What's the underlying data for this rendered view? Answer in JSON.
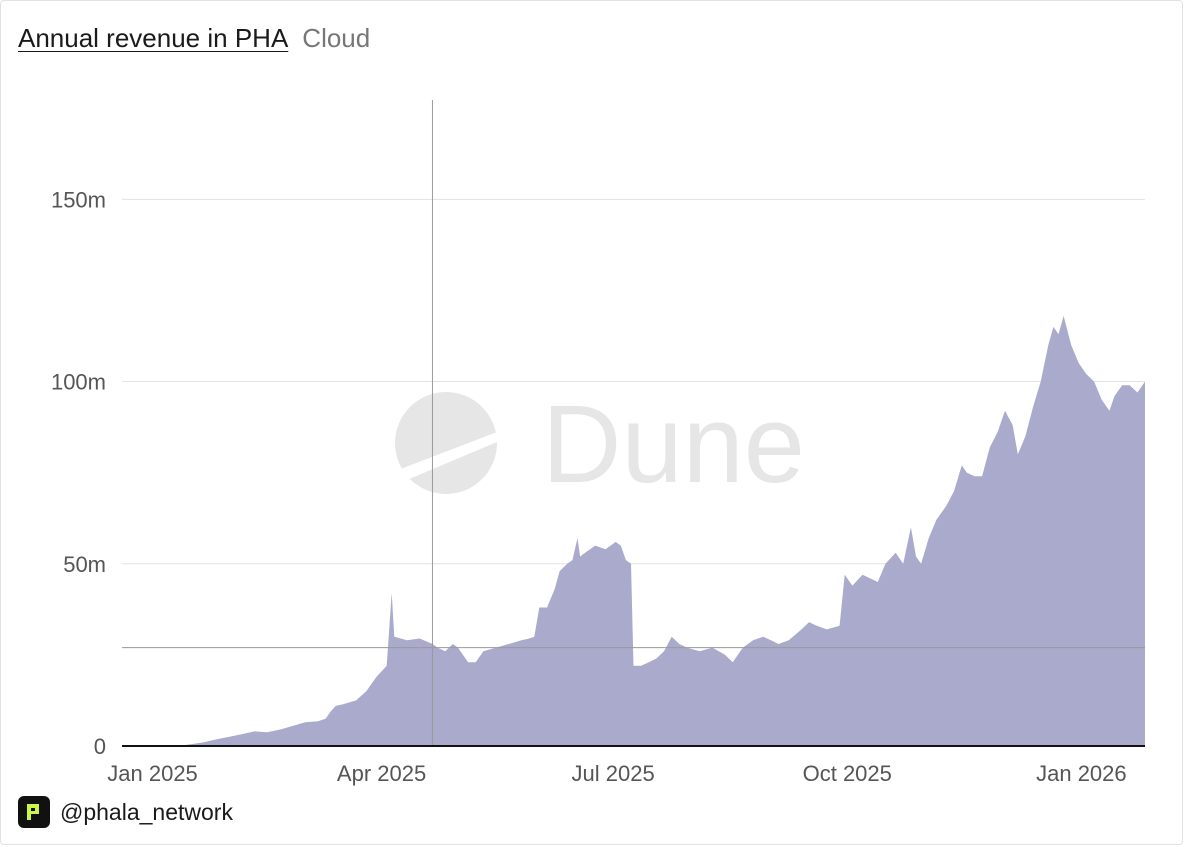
{
  "header": {
    "title": "Annual revenue in PHA",
    "subtitle": "Cloud"
  },
  "footer": {
    "handle": "@phala_network"
  },
  "watermark": {
    "text": "Dune"
  },
  "colors": {
    "area": "#a9aacc",
    "grid": "#e2e2e2",
    "crosshair": "#9a9a9a",
    "baseline": "#111111"
  },
  "chart_data": {
    "type": "area",
    "title": "Annual revenue in PHA",
    "subtitle": "Cloud",
    "xlabel": "",
    "ylabel": "",
    "ylim": [
      0,
      180
    ],
    "y_unit": "m",
    "y_ticks": [
      {
        "value": 0,
        "label": "0"
      },
      {
        "value": 50,
        "label": "50m"
      },
      {
        "value": 100,
        "label": "100m"
      },
      {
        "value": 150,
        "label": "150m"
      }
    ],
    "x_ticks": [
      {
        "day": 0,
        "label": "Jan 2025"
      },
      {
        "day": 90,
        "label": "Apr 2025"
      },
      {
        "day": 181,
        "label": "Jul 2025"
      },
      {
        "day": 273,
        "label": "Oct 2025"
      },
      {
        "day": 365,
        "label": "Jan 2026"
      }
    ],
    "x_domain": [
      -12,
      390
    ],
    "x_unit": "days since 2025-01-01",
    "crosshair": {
      "day": 110,
      "value": 27
    },
    "series": [
      {
        "name": "Annual revenue (PHA)",
        "points": [
          [
            -12,
            0
          ],
          [
            10,
            0
          ],
          [
            15,
            0.5
          ],
          [
            20,
            1
          ],
          [
            25,
            1.8
          ],
          [
            30,
            2.5
          ],
          [
            35,
            3.2
          ],
          [
            40,
            4
          ],
          [
            45,
            3.8
          ],
          [
            50,
            4.5
          ],
          [
            55,
            5.5
          ],
          [
            60,
            6.5
          ],
          [
            65,
            6.8
          ],
          [
            68,
            7.5
          ],
          [
            70,
            9.5
          ],
          [
            72,
            11
          ],
          [
            75,
            11.5
          ],
          [
            80,
            12.5
          ],
          [
            84,
            15
          ],
          [
            88,
            19
          ],
          [
            92,
            22
          ],
          [
            94,
            42
          ],
          [
            95,
            30
          ],
          [
            100,
            29
          ],
          [
            105,
            29.5
          ],
          [
            110,
            28
          ],
          [
            112,
            27
          ],
          [
            115,
            26
          ],
          [
            118,
            28
          ],
          [
            120,
            27
          ],
          [
            124,
            23
          ],
          [
            127,
            23
          ],
          [
            130,
            26
          ],
          [
            135,
            27
          ],
          [
            140,
            28
          ],
          [
            145,
            29
          ],
          [
            148,
            29.5
          ],
          [
            150,
            30
          ],
          [
            152,
            38
          ],
          [
            155,
            38
          ],
          [
            158,
            43
          ],
          [
            160,
            48
          ],
          [
            163,
            50
          ],
          [
            165,
            51
          ],
          [
            167,
            57
          ],
          [
            168,
            52
          ],
          [
            170,
            53
          ],
          [
            174,
            55
          ],
          [
            178,
            54
          ],
          [
            182,
            56
          ],
          [
            184,
            55
          ],
          [
            186,
            51
          ],
          [
            188,
            50
          ],
          [
            189,
            22
          ],
          [
            192,
            22
          ],
          [
            195,
            23
          ],
          [
            198,
            24
          ],
          [
            201,
            26
          ],
          [
            204,
            30
          ],
          [
            207,
            28
          ],
          [
            210,
            27
          ],
          [
            215,
            26
          ],
          [
            220,
            27
          ],
          [
            225,
            25
          ],
          [
            228,
            23
          ],
          [
            232,
            27
          ],
          [
            236,
            29
          ],
          [
            240,
            30
          ],
          [
            243,
            29
          ],
          [
            246,
            28
          ],
          [
            250,
            29
          ],
          [
            255,
            32
          ],
          [
            258,
            34
          ],
          [
            261,
            33
          ],
          [
            265,
            32
          ],
          [
            270,
            33
          ],
          [
            272,
            47
          ],
          [
            275,
            44
          ],
          [
            279,
            47
          ],
          [
            282,
            46
          ],
          [
            285,
            45
          ],
          [
            288,
            50
          ],
          [
            292,
            53
          ],
          [
            295,
            50
          ],
          [
            298,
            60
          ],
          [
            300,
            52
          ],
          [
            302,
            50
          ],
          [
            305,
            57
          ],
          [
            308,
            62
          ],
          [
            312,
            66
          ],
          [
            315,
            70
          ],
          [
            318,
            77
          ],
          [
            320,
            75
          ],
          [
            323,
            74
          ],
          [
            326,
            74
          ],
          [
            329,
            82
          ],
          [
            332,
            86
          ],
          [
            335,
            92
          ],
          [
            338,
            88
          ],
          [
            340,
            80
          ],
          [
            343,
            85
          ],
          [
            346,
            93
          ],
          [
            349,
            100
          ],
          [
            352,
            110
          ],
          [
            354,
            115
          ],
          [
            356,
            113
          ],
          [
            358,
            118
          ],
          [
            361,
            110
          ],
          [
            364,
            105
          ],
          [
            367,
            102
          ],
          [
            370,
            100
          ],
          [
            373,
            95
          ],
          [
            376,
            92
          ],
          [
            378,
            96
          ],
          [
            381,
            99
          ],
          [
            384,
            99
          ],
          [
            387,
            97
          ],
          [
            390,
            100
          ]
        ]
      }
    ]
  }
}
